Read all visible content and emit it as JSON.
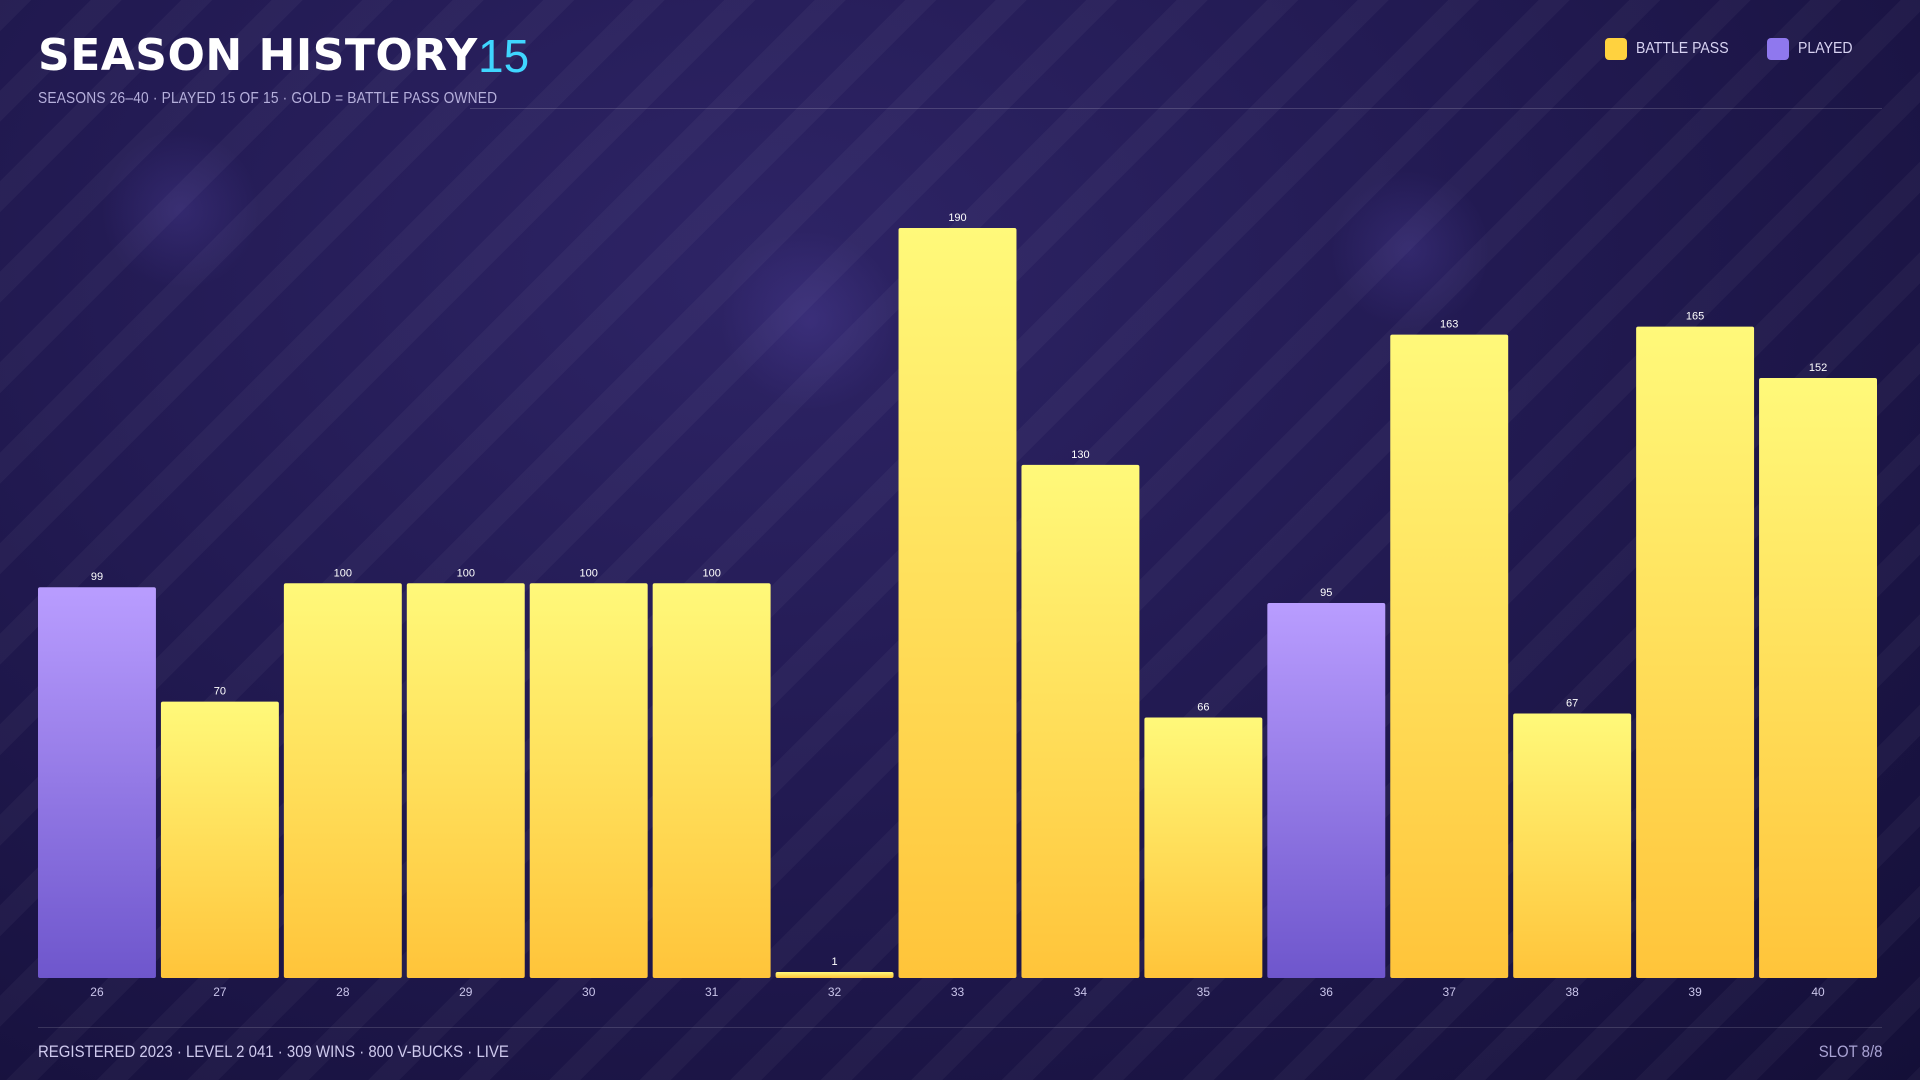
{
  "header": {
    "title": "SEASON HISTORY",
    "count": "15",
    "subtitle": "SEASONS 26–40 · PLAYED 15 OF 15 · GOLD = BATTLE PASS OWNED"
  },
  "legend": [
    {
      "label": "BATTLE PASS",
      "color": "#ffd23f"
    },
    {
      "label": "PLAYED",
      "color": "#8f78ee"
    }
  ],
  "chart_data": {
    "type": "bar",
    "categories": [
      "26",
      "27",
      "28",
      "29",
      "30",
      "31",
      "32",
      "33",
      "34",
      "35",
      "36",
      "37",
      "38",
      "39",
      "40"
    ],
    "values": [
      99,
      70,
      100,
      100,
      100,
      100,
      1,
      190,
      130,
      66,
      95,
      163,
      67,
      165,
      152
    ],
    "battle_pass": [
      false,
      true,
      true,
      true,
      true,
      true,
      true,
      true,
      true,
      true,
      false,
      true,
      true,
      true,
      true
    ],
    "series": [
      {
        "name": "BATTLE PASS"
      },
      {
        "name": "PLAYED"
      }
    ],
    "ylim": [
      0,
      190
    ],
    "grid": false,
    "legend_position": "top-right",
    "colors": {
      "gold_top": "#fff97a",
      "gold_bottom": "#ffc43a",
      "purple_top": "#b99dff",
      "purple_bottom": "#6e56cc"
    }
  },
  "footer": {
    "left": "REGISTERED 2023 · LEVEL 2 041 · 309 WINS · 800 V-BUCKS · LIVE",
    "right": "SLOT 8/8"
  }
}
